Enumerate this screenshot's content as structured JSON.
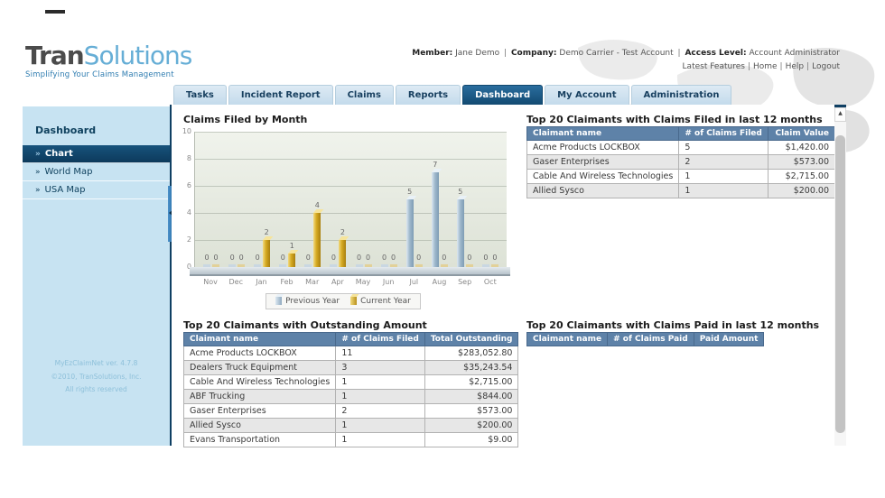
{
  "header": {
    "logo": {
      "part1": "Tran",
      "part2": "Solutions",
      "tagline": "Simplifying Your Claims Management"
    },
    "member_label": "Member:",
    "member": "Jane Demo",
    "company_label": "Company:",
    "company": "Demo Carrier - Test Account",
    "access_label": "Access Level:",
    "access": "Account Administrator",
    "sep": "|",
    "links": [
      "Latest Features",
      "Home",
      "Help",
      "Logout"
    ]
  },
  "tabs": [
    {
      "label": "Tasks",
      "active": false
    },
    {
      "label": "Incident Report",
      "active": false
    },
    {
      "label": "Claims",
      "active": false
    },
    {
      "label": "Reports",
      "active": false
    },
    {
      "label": "Dashboard",
      "active": true
    },
    {
      "label": "My Account",
      "active": false
    },
    {
      "label": "Administration",
      "active": false
    }
  ],
  "sidebar": {
    "title": "Dashboard",
    "bullet": "»",
    "items": [
      {
        "label": "Chart",
        "active": true
      },
      {
        "label": "World Map",
        "active": false
      },
      {
        "label": "USA Map",
        "active": false
      }
    ],
    "footer": [
      "MyEzClaimNet ver. 4.7.8",
      "©2010, TranSolutions, Inc.",
      "All rights reserved"
    ]
  },
  "chart_data": {
    "type": "bar",
    "title": "Claims Filed by Month",
    "categories": [
      "Nov",
      "Dec",
      "Jan",
      "Feb",
      "Mar",
      "Apr",
      "May",
      "Jun",
      "Jul",
      "Aug",
      "Sep",
      "Oct"
    ],
    "series": [
      {
        "name": "Previous Year",
        "color": "#9fb8cc",
        "values": [
          0,
          0,
          0,
          0,
          0,
          0,
          0,
          0,
          5,
          7,
          5,
          0
        ]
      },
      {
        "name": "Current Year",
        "color": "#d4a820",
        "values": [
          0,
          0,
          2,
          1,
          4,
          2,
          0,
          0,
          0,
          0,
          0,
          0
        ]
      }
    ],
    "ylim": [
      0,
      10
    ],
    "yticks": [
      0,
      2,
      4,
      6,
      8,
      10
    ],
    "grid": true,
    "legend_position": "bottom"
  },
  "tables": {
    "claims_filed": {
      "title": "Top 20 Claimants with Claims Filed in last 12 months",
      "headers": [
        "Claimant name",
        "# of Claims Filed",
        "Claim Value"
      ],
      "rows": [
        [
          "Acme Products LOCKBOX",
          "5",
          "$1,420.00"
        ],
        [
          "Gaser Enterprises",
          "2",
          "$573.00"
        ],
        [
          "Cable And Wireless Technologies",
          "1",
          "$2,715.00"
        ],
        [
          "Allied Sysco",
          "1",
          "$200.00"
        ]
      ]
    },
    "outstanding": {
      "title": "Top 20 Claimants with Outstanding Amount",
      "headers": [
        "Claimant name",
        "# of Claims Filed",
        "Total Outstanding"
      ],
      "rows": [
        [
          "Acme Products LOCKBOX",
          "11",
          "$283,052.80"
        ],
        [
          "Dealers Truck Equipment",
          "3",
          "$35,243.54"
        ],
        [
          "Cable And Wireless Technologies",
          "1",
          "$2,715.00"
        ],
        [
          "ABF Trucking",
          "1",
          "$844.00"
        ],
        [
          "Gaser Enterprises",
          "2",
          "$573.00"
        ],
        [
          "Allied Sysco",
          "1",
          "$200.00"
        ],
        [
          "Evans Transportation",
          "1",
          "$9.00"
        ]
      ]
    },
    "claims_paid": {
      "title": "Top 20 Claimants with Claims Paid in last 12 months",
      "headers": [
        "Claimant name",
        "# of Claims Paid",
        "Paid Amount"
      ],
      "rows": []
    }
  },
  "colors": {
    "navy": "#0f3f63",
    "table_header": "#5e82a8",
    "sidebar_bg": "#c7e3f2",
    "tab_inactive": "#cde2ef",
    "bar_previous": "#9fb8cc",
    "bar_current": "#d4a820",
    "logo_accent": "#66aed6"
  }
}
